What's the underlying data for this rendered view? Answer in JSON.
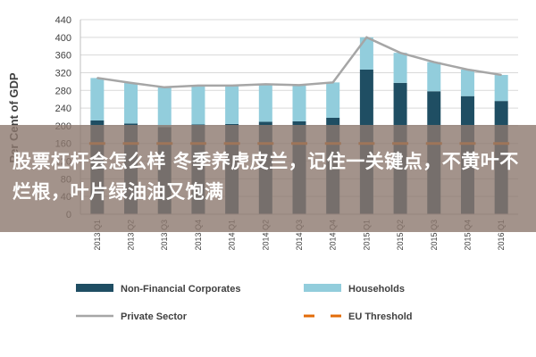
{
  "chart_data": {
    "type": "bar",
    "stacked": true,
    "ylabel": "Per Cent of GDP",
    "ylim": [
      0,
      440
    ],
    "yticks": [
      0,
      40,
      80,
      120,
      160,
      200,
      240,
      280,
      320,
      360,
      400,
      440
    ],
    "grid": true,
    "legend_position": "bottom",
    "categories": [
      "2013 Q1",
      "2013 Q2",
      "2013 Q3",
      "2013 Q4",
      "2014 Q1",
      "2014 Q2",
      "2014 Q3",
      "2014 Q4",
      "2015 Q1",
      "2015 Q2",
      "2015 Q3",
      "2015 Q4",
      "2016 Q1"
    ],
    "series": [
      {
        "name": "Non-Financial Corporates",
        "kind": "bar",
        "color": "#1f4e63",
        "values": [
          212,
          205,
          197,
          203,
          204,
          209,
          210,
          218,
          327,
          297,
          278,
          267,
          256
        ]
      },
      {
        "name": "Households",
        "kind": "bar",
        "color": "#92cddc",
        "values": [
          96,
          92,
          90,
          88,
          87,
          85,
          82,
          80,
          73,
          68,
          66,
          60,
          59
        ]
      },
      {
        "name": "Private Sector",
        "kind": "line",
        "color": "#a6a6a6",
        "values": [
          308,
          297,
          287,
          291,
          291,
          294,
          292,
          298,
          400,
          365,
          344,
          327,
          315
        ]
      },
      {
        "name": "EU Threshold",
        "kind": "dashed-line",
        "color": "#e36c09",
        "values": [
          160,
          160,
          160,
          160,
          160,
          160,
          160,
          160,
          160,
          160,
          160,
          160,
          160
        ]
      }
    ]
  },
  "overlay": {
    "text": "股票杠杆会怎么样 冬季养虎皮兰，记住一关键点，不黄叶不烂根，叶片绿油油又饱满"
  }
}
